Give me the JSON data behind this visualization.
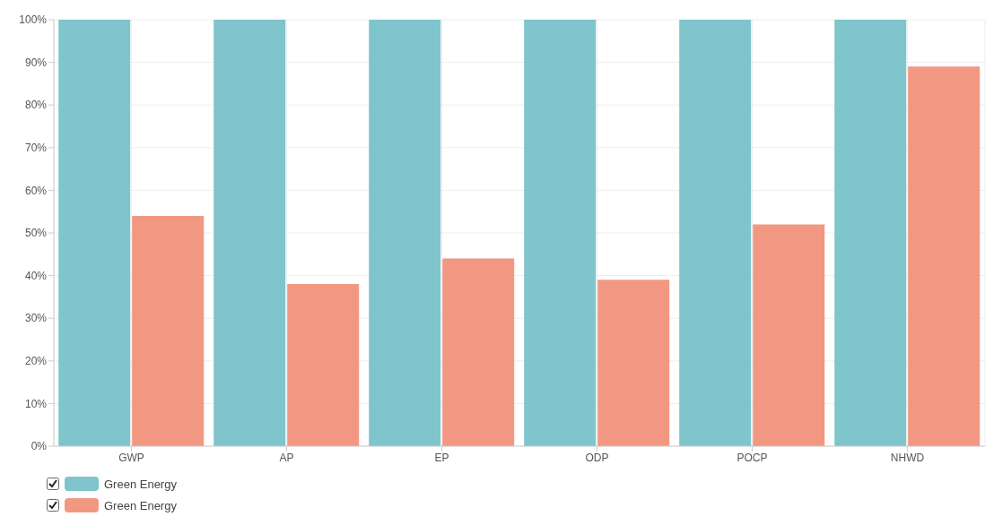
{
  "chart_data": {
    "type": "bar",
    "categories": [
      "GWP",
      "AP",
      "EP",
      "ODP",
      "POCP",
      "NHWD"
    ],
    "series": [
      {
        "name": "Green Energy",
        "color": "#80c4cc",
        "values": [
          100,
          100,
          100,
          100,
          100,
          100
        ]
      },
      {
        "name": "Green Energy",
        "color": "#f29882",
        "values": [
          54,
          38,
          44,
          39,
          52,
          89
        ]
      }
    ],
    "ylim": [
      0,
      100
    ],
    "yticks": [
      {
        "value": 0,
        "label": "0%"
      },
      {
        "value": 10,
        "label": "10%"
      },
      {
        "value": 20,
        "label": "20%"
      },
      {
        "value": 30,
        "label": "30%"
      },
      {
        "value": 40,
        "label": "40%"
      },
      {
        "value": 50,
        "label": "50%"
      },
      {
        "value": 60,
        "label": "60%"
      },
      {
        "value": 70,
        "label": "70%"
      },
      {
        "value": 80,
        "label": "80%"
      },
      {
        "value": 90,
        "label": "90%"
      },
      {
        "value": 100,
        "label": "100%"
      }
    ],
    "grid": true,
    "legend": "bottom left"
  }
}
